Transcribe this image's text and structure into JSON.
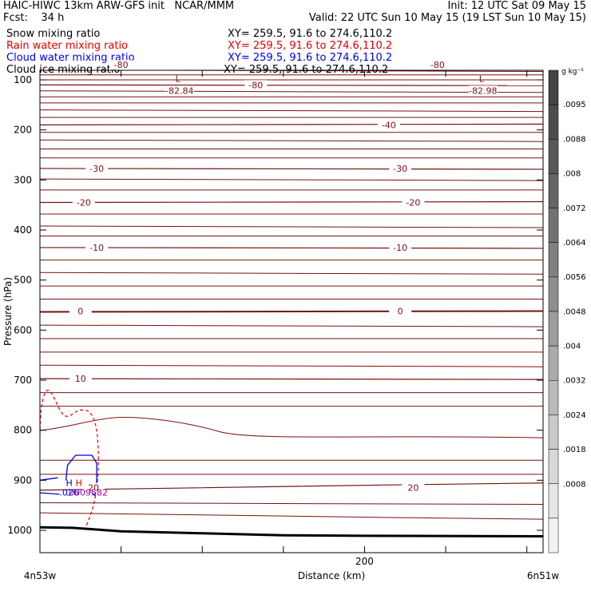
{
  "header": {
    "line1_left": "HAIC-HIWC 13km ARW-GFS init   NCAR/MMM",
    "line1_right": "Init: 12 UTC Sat 09 May 15",
    "line2_left": "Fcst:    34 h",
    "line2_right": "Valid: 22 UTC Sun 10 May 15 (19 LST Sun 10 May 15)",
    "fields": [
      {
        "name": "Snow mixing ratio",
        "xy": "XY= 259.5, 91.6 to 274.6,110.2",
        "color": "#000000"
      },
      {
        "name": "Rain water mixing ratio",
        "xy": "XY= 259.5, 91.6 to 274.6,110.2",
        "color": "#e00000"
      },
      {
        "name": "Cloud water mixing ratio",
        "xy": "XY= 259.5, 91.6 to 274.6,110.2",
        "color": "#0000e0"
      },
      {
        "name": "Cloud ice mixing ratio",
        "xy": "XY= 259.5, 91.6 to 274.6,110.2",
        "color": "#000000"
      }
    ]
  },
  "colorbar": {
    "unit_label": "g kg⁻¹",
    "tick_labels": [
      ".0095",
      ".0088",
      ".008",
      ".0072",
      ".0064",
      ".0056",
      ".0048",
      ".004",
      ".0032",
      ".0024",
      ".0018",
      ".0008"
    ],
    "colors": [
      "#444444",
      "#4c4c4c",
      "#585858",
      "#646464",
      "#727272",
      "#808080",
      "#8e8e8e",
      "#9c9c9c",
      "#ababab",
      "#bababa",
      "#c9c9c9",
      "#d8d8d8",
      "#e6e6e6",
      "#f2f2f2"
    ]
  },
  "chart_data": {
    "type": "line",
    "title": "",
    "xlabel": "Distance (km)",
    "ylabel": "Pressure (hPa)",
    "x_range_km": [
      0,
      310
    ],
    "x_ticks": [
      200
    ],
    "x_endpoint_labels": [
      "4n53w",
      "6n51w"
    ],
    "y_range_hPa": [
      50,
      1050
    ],
    "y_ticks": [
      100,
      200,
      300,
      400,
      500,
      600,
      700,
      800,
      900,
      1000
    ],
    "temperature_contours_C": [
      {
        "value": -80,
        "pressure": 70,
        "labels": [
          {
            "x": 50,
            "text": "-80"
          },
          {
            "x": 245,
            "text": "-80"
          }
        ]
      },
      {
        "value": -80,
        "pressure": 110,
        "labels": [
          {
            "x": 133,
            "text": "-80"
          }
        ]
      },
      {
        "value": -40,
        "pressure": 190,
        "labels": [
          {
            "x": 215,
            "text": "-40"
          }
        ]
      },
      {
        "value": -30,
        "pressure": 277,
        "labels": [
          {
            "x": 35,
            "text": "-30"
          },
          {
            "x": 222,
            "text": "-30"
          }
        ]
      },
      {
        "value": -20,
        "pressure": 345,
        "labels": [
          {
            "x": 27,
            "text": "-20"
          },
          {
            "x": 230,
            "text": "-20"
          }
        ]
      },
      {
        "value": -10,
        "pressure": 435,
        "labels": [
          {
            "x": 35,
            "text": "-10"
          },
          {
            "x": 222,
            "text": "-10"
          }
        ]
      },
      {
        "value": 0,
        "pressure": 562,
        "labels": [
          {
            "x": 25,
            "text": "0"
          },
          {
            "x": 222,
            "text": "0"
          }
        ]
      },
      {
        "value": 10,
        "pressure": 697,
        "labels": [
          {
            "x": 25,
            "text": "10"
          }
        ]
      },
      {
        "value": 20,
        "pressure": 915,
        "labels": [
          {
            "x": 33,
            "text": "20"
          },
          {
            "x": 230,
            "text": "20"
          }
        ]
      }
    ],
    "temperature_minima": [
      {
        "x": 85,
        "pressure": 110,
        "marker": "L",
        "value": "-82.84"
      },
      {
        "x": 272,
        "pressure": 110,
        "marker": "L",
        "value": "-82.98"
      }
    ],
    "cloud_water_max": {
      "x": 18,
      "pressure": 915,
      "marker": "H",
      "value": ".026"
    },
    "rain_water_max": {
      "x": 24,
      "pressure": 915,
      "marker": "H",
      "value": ".0009582"
    },
    "surface_pressure": [
      {
        "x": 0,
        "p": 994
      },
      {
        "x": 20,
        "p": 995
      },
      {
        "x": 50,
        "p": 1002
      },
      {
        "x": 100,
        "p": 1006
      },
      {
        "x": 150,
        "p": 1010
      },
      {
        "x": 200,
        "p": 1011
      },
      {
        "x": 310,
        "p": 1012
      }
    ]
  }
}
